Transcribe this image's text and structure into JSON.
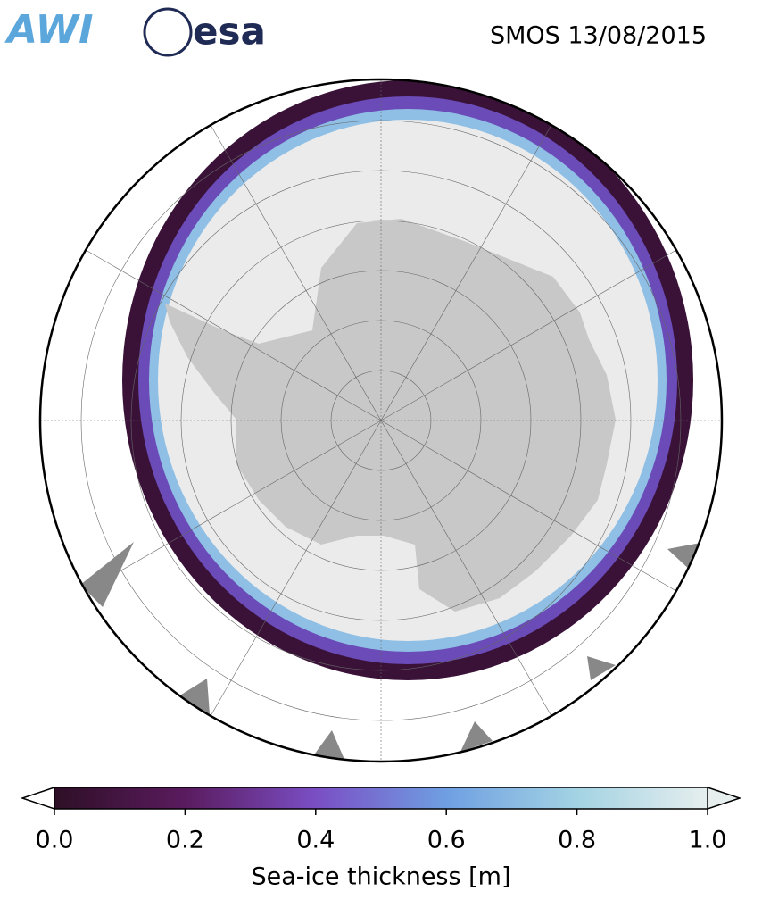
{
  "header": {
    "logos": [
      "AWI",
      "esa"
    ],
    "title": "SMOS 13/08/2015"
  },
  "colorbar": {
    "range": [
      0,
      1
    ],
    "ticks": [
      {
        "value": 0,
        "label": "0.0"
      },
      {
        "value": 0.2,
        "label": "0.2"
      },
      {
        "value": 0.4,
        "label": "0.4"
      },
      {
        "value": 0.6,
        "label": "0.6"
      },
      {
        "value": 0.8,
        "label": "0.8"
      },
      {
        "value": 1,
        "label": "1.0"
      }
    ],
    "label": "Sea-ice thickness [m]",
    "colors": [
      "#2e0f26",
      "#5a1b5e",
      "#7a4ec4",
      "#6f9fe2",
      "#a3d3e3",
      "#e6eeee"
    ]
  }
}
